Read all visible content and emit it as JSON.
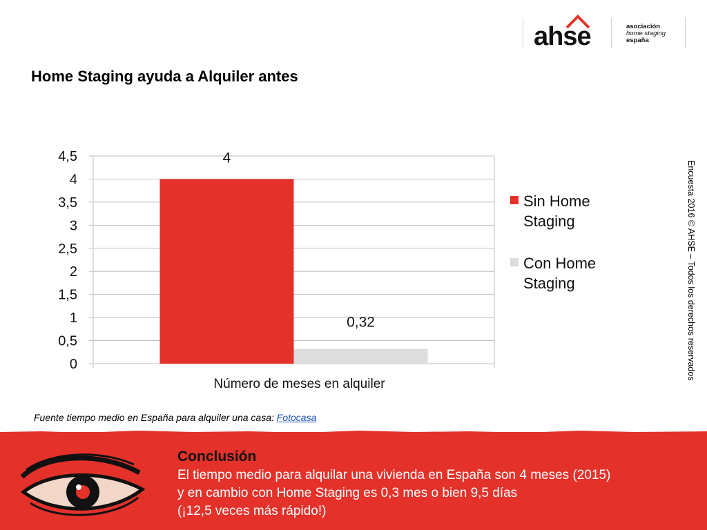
{
  "logo": {
    "wordmark": "ahse",
    "line1": "asociación",
    "line2": "home staging",
    "line3": "españa"
  },
  "title": "Home Staging ayuda a Alquiler antes",
  "source": {
    "prefix": "Fuente tiempo medio en España para alquiler una casa: ",
    "link": "Fotocasa"
  },
  "vertical_note": "Encuesta 2016 © AHSE – Todos los derechos reservados",
  "conclusion": {
    "heading": "Conclusión",
    "lines": [
      "El tiempo medio para alquilar una vivienda en España son 4 meses (2015)",
      "y en cambio con Home Staging es 0,3 mes o bien 9,5 días",
      "(¡12,5 veces más rápido!)"
    ]
  },
  "chart_data": {
    "type": "bar",
    "categories": [
      "Número de meses en alquiler"
    ],
    "series": [
      {
        "name": "Sin Home Staging",
        "values": [
          4
        ],
        "label": "4",
        "color": "#e4322b"
      },
      {
        "name": "Con Home Staging",
        "values": [
          0.32
        ],
        "label": "0,32",
        "color": "#dddddd"
      }
    ],
    "xlabel": "Número de meses en alquiler",
    "ylim": [
      0,
      4.5
    ],
    "yticks": [
      "0",
      "0,5",
      "1",
      "1,5",
      "2",
      "2,5",
      "3",
      "3,5",
      "4",
      "4,5"
    ],
    "grid": true,
    "legend": "right"
  }
}
